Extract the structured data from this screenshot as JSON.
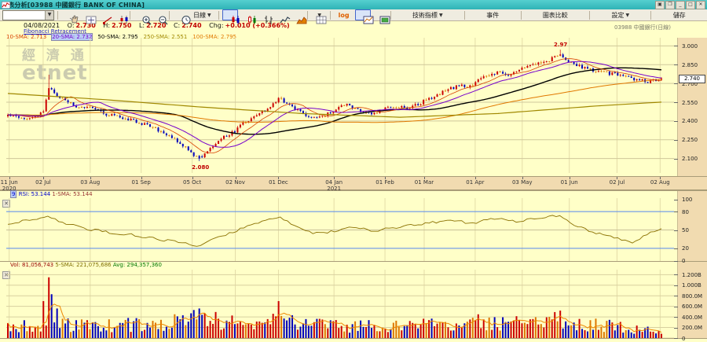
{
  "window": {
    "title": "圖表分析[03988 中國銀行 BANK OF CHINA]",
    "buttons": [
      {
        "name": "popup-window-button",
        "glyph": "▣"
      },
      {
        "name": "cascade-window-button",
        "glyph": "❐"
      },
      {
        "name": "minimize-button",
        "glyph": "_"
      },
      {
        "name": "maximize-button",
        "glyph": "□"
      },
      {
        "name": "close-button",
        "glyph": "✕"
      }
    ]
  },
  "toolbar": {
    "items": [
      {
        "type": "combo",
        "name": "symbol-combobox",
        "value": "",
        "group": "left"
      },
      {
        "type": "sep",
        "group": "left"
      },
      {
        "type": "icon",
        "name": "pan-tool-button",
        "icon": "hand",
        "group": "left"
      },
      {
        "type": "icon",
        "name": "crosshair-button",
        "icon": "crosshair",
        "group": "left"
      },
      {
        "type": "icon",
        "name": "trendline-tool-button",
        "icon": "trendline",
        "group": "left"
      },
      {
        "type": "icon",
        "name": "candle-adjust-button",
        "icon": "candle-hl",
        "group": "left"
      },
      {
        "type": "sep",
        "group": "left"
      },
      {
        "type": "icon",
        "name": "zoom-in-button",
        "icon": "zoom-in",
        "group": "left"
      },
      {
        "type": "icon",
        "name": "zoom-out-button",
        "icon": "zoom-out",
        "group": "left"
      },
      {
        "type": "sep",
        "group": "left"
      },
      {
        "type": "icon",
        "name": "history-button",
        "icon": "clock",
        "group": "left"
      },
      {
        "type": "dropdown",
        "name": "interval-dropdown",
        "label": "日線",
        "group": "left"
      },
      {
        "type": "sep",
        "group": "left"
      },
      {
        "type": "icon",
        "name": "candlestick-chart-button",
        "icon": "candles-rb",
        "selected": true,
        "group": "left"
      },
      {
        "type": "icon",
        "name": "hollow-candle-chart-button",
        "icon": "candles-rg",
        "group": "left"
      },
      {
        "type": "icon",
        "name": "ohlc-chart-button",
        "icon": "ohlc",
        "group": "left"
      },
      {
        "type": "icon",
        "name": "line-chart-button",
        "icon": "line",
        "group": "left"
      },
      {
        "type": "icon",
        "name": "area-chart-button",
        "icon": "area",
        "group": "left"
      },
      {
        "type": "sep",
        "group": "left"
      },
      {
        "type": "icon-dropdown",
        "name": "grid-layout-dropdown",
        "icon": "grid",
        "group": "left"
      },
      {
        "type": "sep",
        "group": "left"
      },
      {
        "type": "text",
        "name": "log-scale-button",
        "label": "log",
        "accent": true,
        "group": "left"
      },
      {
        "type": "icon",
        "name": "price-pane-button",
        "icon": "pane1",
        "selected": true,
        "group": "left"
      },
      {
        "type": "icon",
        "name": "compare-pane-button",
        "icon": "pane2",
        "group": "left"
      },
      {
        "type": "sep",
        "group": "left"
      },
      {
        "type": "textbtn",
        "name": "technical-indicators-button",
        "label": "技術指標",
        "dropdown": true,
        "group": "right"
      },
      {
        "type": "sep",
        "group": "right"
      },
      {
        "type": "textbtn",
        "name": "events-button",
        "label": "事件",
        "group": "right"
      },
      {
        "type": "sep",
        "group": "right"
      },
      {
        "type": "textbtn",
        "name": "chart-compare-button",
        "label": "圖表比較",
        "group": "right"
      },
      {
        "type": "sep",
        "group": "right"
      },
      {
        "type": "textbtn",
        "name": "settings-button",
        "label": "設定",
        "dropdown": true,
        "group": "right"
      },
      {
        "type": "sep",
        "group": "right"
      },
      {
        "type": "textbtn",
        "name": "save-button",
        "label": "儲存",
        "group": "right"
      }
    ]
  },
  "quote": {
    "date": "04/08/2021",
    "o_label": "O:",
    "o": "2.730",
    "h_label": "H:",
    "h": "2.750",
    "l_label": "L:",
    "l": "2.720",
    "c_label": "C:",
    "c": "2.740",
    "chg_label": "Chg:",
    "chg": "+0.010 (+0.366%)"
  },
  "tool_label": "Fibonacci Retracement",
  "ticker_label": "03988  中國銀行(日線)",
  "watermark": {
    "cjk": "經 濟 通",
    "latin": "etnet"
  },
  "chart_data": [
    {
      "id": "price",
      "type": "candlestick",
      "title": "03988 中國銀行 BANK OF CHINA 日線",
      "legend": [
        {
          "label": "10-SMA: 2.713",
          "color": "#D84000",
          "highlight": false
        },
        {
          "label": "20-SMA: 2.732",
          "color": "#7700CC",
          "highlight": true
        },
        {
          "label": "50-SMA: 2.795",
          "color": "#000000",
          "highlight": false
        },
        {
          "label": "250-SMA: 2.551",
          "color": "#A08800",
          "highlight": false
        },
        {
          "label": "100-SMA: 2.795",
          "color": "#E07800",
          "highlight": false
        }
      ],
      "y_axis": {
        "ticks": [
          "3.000",
          "2.850",
          "2.700",
          "2.550",
          "2.400",
          "2.250",
          "2.100"
        ],
        "values": [
          3.0,
          2.85,
          2.7,
          2.55,
          2.4,
          2.25,
          2.1
        ],
        "range": [
          1.985,
          3.065
        ]
      },
      "x_axis": {
        "ticks": [
          {
            "label": "11 Jun",
            "sub": "2020",
            "f": 0.002
          },
          {
            "label": "02 Jul",
            "f": 0.054
          },
          {
            "label": "03 Aug",
            "f": 0.126
          },
          {
            "label": "01 Sep",
            "f": 0.204
          },
          {
            "label": "05 Oct",
            "f": 0.282
          },
          {
            "label": "02 Nov",
            "f": 0.348
          },
          {
            "label": "01 Dec",
            "f": 0.414
          },
          {
            "label": "04 Jan",
            "sub": "2021",
            "f": 0.499
          },
          {
            "label": "01 Feb",
            "f": 0.577
          },
          {
            "label": "01 Mar",
            "f": 0.637
          },
          {
            "label": "01 Apr",
            "f": 0.715
          },
          {
            "label": "03 May",
            "f": 0.787
          },
          {
            "label": "01 Jun",
            "f": 0.859
          },
          {
            "label": "02 Jul",
            "f": 0.932
          },
          {
            "label": "02 Aug",
            "f": 0.998
          }
        ]
      },
      "n_candles": 240,
      "close_anchors": [
        [
          0,
          2.44
        ],
        [
          0.035,
          2.42
        ],
        [
          0.055,
          2.47
        ],
        [
          0.062,
          2.68
        ],
        [
          0.075,
          2.6
        ],
        [
          0.09,
          2.55
        ],
        [
          0.11,
          2.51
        ],
        [
          0.128,
          2.5
        ],
        [
          0.15,
          2.45
        ],
        [
          0.175,
          2.43
        ],
        [
          0.205,
          2.38
        ],
        [
          0.23,
          2.33
        ],
        [
          0.255,
          2.26
        ],
        [
          0.275,
          2.17
        ],
        [
          0.291,
          2.1
        ],
        [
          0.3,
          2.13
        ],
        [
          0.315,
          2.21
        ],
        [
          0.33,
          2.27
        ],
        [
          0.35,
          2.33
        ],
        [
          0.365,
          2.4
        ],
        [
          0.385,
          2.46
        ],
        [
          0.4,
          2.51
        ],
        [
          0.41,
          2.55
        ],
        [
          0.415,
          2.59
        ],
        [
          0.425,
          2.55
        ],
        [
          0.44,
          2.49
        ],
        [
          0.455,
          2.45
        ],
        [
          0.47,
          2.43
        ],
        [
          0.485,
          2.45
        ],
        [
          0.5,
          2.49
        ],
        [
          0.515,
          2.53
        ],
        [
          0.53,
          2.51
        ],
        [
          0.545,
          2.47
        ],
        [
          0.56,
          2.46
        ],
        [
          0.575,
          2.5
        ],
        [
          0.59,
          2.52
        ],
        [
          0.61,
          2.5
        ],
        [
          0.63,
          2.54
        ],
        [
          0.645,
          2.58
        ],
        [
          0.66,
          2.62
        ],
        [
          0.675,
          2.65
        ],
        [
          0.69,
          2.69
        ],
        [
          0.705,
          2.67
        ],
        [
          0.72,
          2.72
        ],
        [
          0.735,
          2.77
        ],
        [
          0.75,
          2.79
        ],
        [
          0.765,
          2.76
        ],
        [
          0.78,
          2.8
        ],
        [
          0.795,
          2.83
        ],
        [
          0.81,
          2.86
        ],
        [
          0.83,
          2.89
        ],
        [
          0.845,
          2.93
        ],
        [
          0.855,
          2.89
        ],
        [
          0.865,
          2.86
        ],
        [
          0.88,
          2.83
        ],
        [
          0.9,
          2.8
        ],
        [
          0.92,
          2.78
        ],
        [
          0.94,
          2.76
        ],
        [
          0.96,
          2.73
        ],
        [
          0.98,
          2.71
        ],
        [
          1,
          2.74
        ]
      ],
      "sma250_anchors": [
        [
          0,
          2.62
        ],
        [
          0.15,
          2.57
        ],
        [
          0.3,
          2.51
        ],
        [
          0.45,
          2.46
        ],
        [
          0.6,
          2.43
        ],
        [
          0.75,
          2.46
        ],
        [
          0.9,
          2.52
        ],
        [
          1,
          2.551
        ]
      ],
      "annotations": [
        {
          "text": "2.97",
          "f": 0.845,
          "price": 3.01
        },
        {
          "text": "2.080",
          "f": 0.291,
          "price": 2.028
        }
      ],
      "last_price_tag": "2.740",
      "colors": {
        "up": "#CC0000",
        "down": "#0000BB",
        "flat": "#DD7700"
      }
    },
    {
      "id": "rsi",
      "type": "line",
      "legend": {
        "period": "9",
        "rsi": "RSI: 53.144",
        "sma": "1-SMA: 53.144"
      },
      "y_axis": {
        "ticks": [
          "100",
          "80",
          "50",
          "20",
          "0"
        ],
        "values": [
          100,
          80,
          50,
          20,
          0
        ],
        "range": [
          0,
          100
        ]
      },
      "levels": [
        80,
        20
      ],
      "anchors": [
        [
          0,
          58
        ],
        [
          0.03,
          66
        ],
        [
          0.062,
          72
        ],
        [
          0.09,
          60
        ],
        [
          0.12,
          52
        ],
        [
          0.15,
          47
        ],
        [
          0.19,
          42
        ],
        [
          0.23,
          35
        ],
        [
          0.27,
          28
        ],
        [
          0.291,
          24
        ],
        [
          0.31,
          33
        ],
        [
          0.34,
          45
        ],
        [
          0.37,
          58
        ],
        [
          0.4,
          68
        ],
        [
          0.415,
          72
        ],
        [
          0.44,
          55
        ],
        [
          0.47,
          44
        ],
        [
          0.5,
          48
        ],
        [
          0.53,
          55
        ],
        [
          0.56,
          48
        ],
        [
          0.59,
          54
        ],
        [
          0.62,
          58
        ],
        [
          0.65,
          62
        ],
        [
          0.68,
          66
        ],
        [
          0.71,
          60
        ],
        [
          0.73,
          66
        ],
        [
          0.75,
          70
        ],
        [
          0.78,
          64
        ],
        [
          0.8,
          68
        ],
        [
          0.83,
          72
        ],
        [
          0.845,
          74
        ],
        [
          0.86,
          62
        ],
        [
          0.88,
          52
        ],
        [
          0.9,
          45
        ],
        [
          0.92,
          40
        ],
        [
          0.94,
          35
        ],
        [
          0.955,
          30
        ],
        [
          0.97,
          38
        ],
        [
          0.985,
          46
        ],
        [
          1,
          53
        ]
      ],
      "color": "#8A7000",
      "level_color": "#5588EE"
    },
    {
      "id": "volume",
      "type": "bar",
      "legend": {
        "vol": "Vol: 81,056,743",
        "sma": "5-SMA: 221,075,686",
        "avg": "Avg: 294,357,360"
      },
      "y_axis": {
        "ticks": [
          "1.200B",
          "1.000B",
          "800.0M",
          "600.0M",
          "400.0M",
          "200.0M",
          "0"
        ],
        "values": [
          1200000000.0,
          1000000000.0,
          800000000.0,
          600000000.0,
          400000000.0,
          200000000.0,
          0
        ],
        "range": [
          0,
          1250000000.0
        ]
      },
      "base_anchors_m": [
        [
          0,
          210
        ],
        [
          0.05,
          260
        ],
        [
          0.1,
          250
        ],
        [
          0.15,
          230
        ],
        [
          0.2,
          260
        ],
        [
          0.25,
          300
        ],
        [
          0.291,
          360
        ],
        [
          0.33,
          300
        ],
        [
          0.38,
          280
        ],
        [
          0.415,
          310
        ],
        [
          0.47,
          240
        ],
        [
          0.52,
          210
        ],
        [
          0.57,
          230
        ],
        [
          0.62,
          240
        ],
        [
          0.67,
          250
        ],
        [
          0.72,
          280
        ],
        [
          0.77,
          260
        ],
        [
          0.81,
          300
        ],
        [
          0.845,
          340
        ],
        [
          0.88,
          260
        ],
        [
          0.92,
          230
        ],
        [
          0.96,
          170
        ],
        [
          1,
          110
        ]
      ],
      "spikes_m": [
        [
          0.056,
          700
        ],
        [
          0.062,
          1150
        ],
        [
          0.068,
          830
        ],
        [
          0.074,
          560
        ],
        [
          0.291,
          560
        ],
        [
          0.302,
          470
        ],
        [
          0.415,
          700
        ],
        [
          0.72,
          450
        ],
        [
          0.845,
          520
        ]
      ],
      "last_volume": 81056743,
      "sma_color": "#EE8800"
    }
  ]
}
